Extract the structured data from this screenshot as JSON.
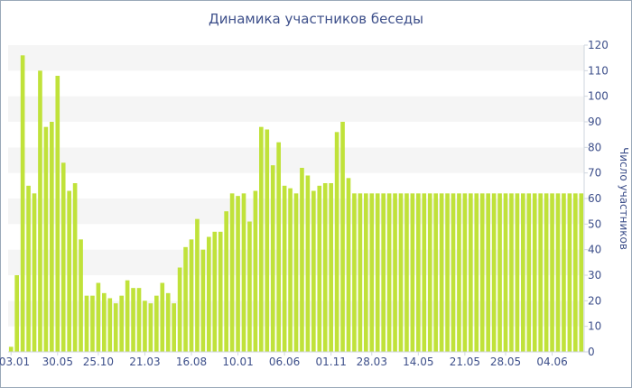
{
  "chart_data": {
    "type": "bar",
    "title": "Динамика участников беседы",
    "ylabel": "Число участников",
    "xlabel": "",
    "ylim": [
      0,
      120
    ],
    "yticks": [
      0,
      10,
      20,
      30,
      40,
      50,
      60,
      70,
      80,
      90,
      100,
      110,
      120
    ],
    "grid": "horizontal bands",
    "bar_color": "#c0e23a",
    "x_tick_labels": [
      {
        "label": "03.01",
        "index": 0
      },
      {
        "label": "30.05",
        "index": 8
      },
      {
        "label": "25.10",
        "index": 15
      },
      {
        "label": "21.03",
        "index": 23
      },
      {
        "label": "16.08",
        "index": 31
      },
      {
        "label": "10.01",
        "index": 39
      },
      {
        "label": "06.06",
        "index": 47
      },
      {
        "label": "01.11",
        "index": 55
      },
      {
        "label": "28.03",
        "index": 62
      },
      {
        "label": "14.05",
        "index": 70
      },
      {
        "label": "21.05",
        "index": 78
      },
      {
        "label": "28.05",
        "index": 85
      },
      {
        "label": "04.06",
        "index": 93
      }
    ],
    "values": [
      2,
      30,
      116,
      65,
      62,
      110,
      88,
      90,
      108,
      74,
      63,
      66,
      44,
      22,
      22,
      27,
      23,
      21,
      19,
      22,
      28,
      25,
      25,
      20,
      19,
      22,
      27,
      23,
      19,
      33,
      41,
      44,
      52,
      40,
      45,
      47,
      47,
      55,
      62,
      61,
      62,
      51,
      63,
      88,
      87,
      73,
      82,
      65,
      64,
      62,
      72,
      69,
      63,
      65,
      66,
      66,
      86,
      90,
      68,
      62,
      62,
      62,
      62,
      62,
      62,
      62,
      62,
      62,
      62,
      62,
      62,
      62,
      62,
      62,
      62,
      62,
      62,
      62,
      62,
      62,
      62,
      62,
      62,
      62,
      62,
      62,
      62,
      62,
      62,
      62,
      62,
      62,
      62,
      62,
      62,
      62,
      62,
      62,
      62
    ]
  }
}
